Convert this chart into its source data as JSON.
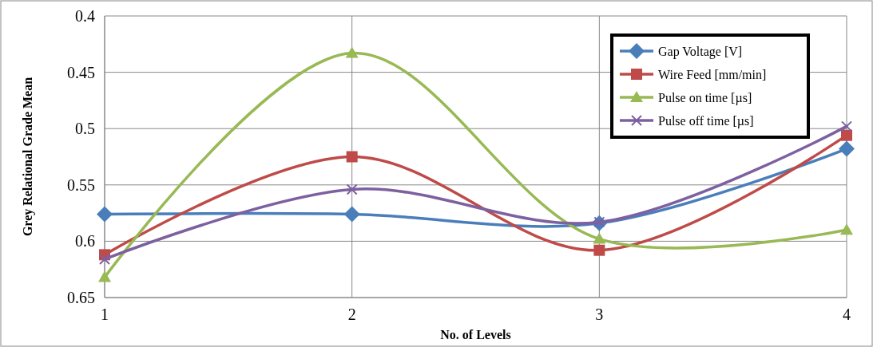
{
  "chart_data": {
    "type": "line",
    "xlabel": "No. of Levels",
    "ylabel": "Grey Relational Grade Mean",
    "x": [
      1,
      2,
      3,
      4
    ],
    "xlim": [
      1,
      4
    ],
    "xticks": [
      1,
      2,
      3,
      4
    ],
    "ylim": [
      0.65,
      0.4
    ],
    "yticks": [
      0.4,
      0.45,
      0.5,
      0.55,
      0.6,
      0.65
    ],
    "grid": true,
    "legend": "top right",
    "line_style": "solid",
    "series": [
      {
        "name": "Gap Voltage [V]",
        "color": "#4a7ebb",
        "marker": "diamond",
        "values": [
          0.576,
          0.576,
          0.584,
          0.518
        ]
      },
      {
        "name": "Wire Feed [mm/min]",
        "color": "#be4b48",
        "marker": "square",
        "values": [
          0.612,
          0.525,
          0.608,
          0.506
        ]
      },
      {
        "name": "Pulse on time [µs]",
        "color": "#98b954",
        "marker": "triangle",
        "values": [
          0.632,
          0.433,
          0.598,
          0.59
        ]
      },
      {
        "name": "Pulse off time [µs]",
        "color": "#7d60a0",
        "marker": "cross",
        "values": [
          0.616,
          0.554,
          0.583,
          0.498
        ]
      }
    ]
  }
}
